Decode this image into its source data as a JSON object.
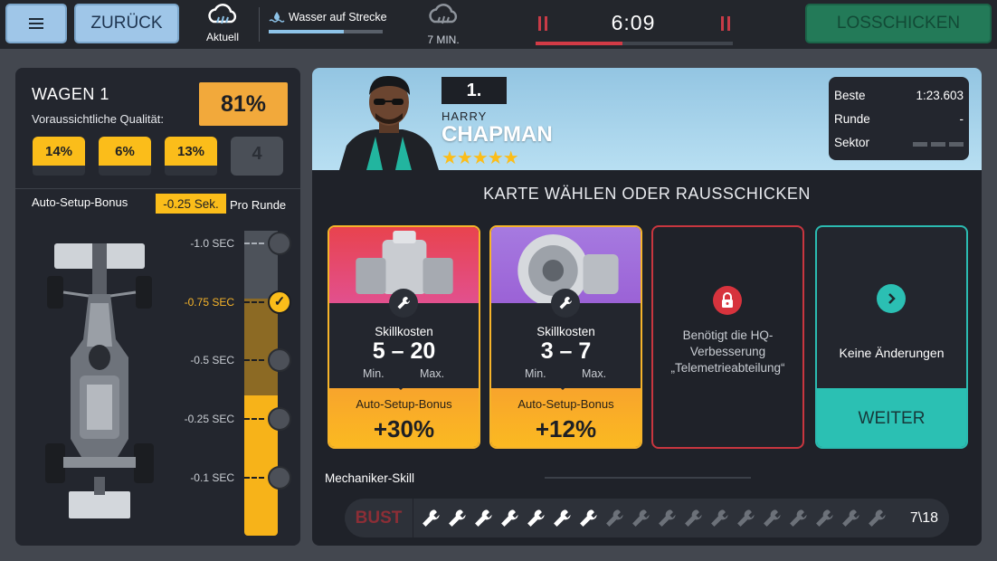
{
  "topbar": {
    "back_label": "ZURÜCK",
    "weather_now": "Aktuell",
    "water_label": "Wasser auf Strecke",
    "water_level": 0.66,
    "weather_next": "7 MIN.",
    "timer": "6:09",
    "timer_progress": 0.44,
    "send_label": "LOSSCHICKEN"
  },
  "car_panel": {
    "title": "WAGEN 1",
    "subtitle": "Voraussichtliche Qualität:",
    "quality": "81%",
    "slots": [
      "14%",
      "6%",
      "13%",
      "4"
    ],
    "setup_label": "Auto-Setup-Bonus",
    "setup_value": "-0.25 Sek.",
    "setup_suffix": "Pro Runde",
    "sec_levels": [
      "-1.0 SEC",
      "-0.75 SEC",
      "-0.5 SEC",
      "-0.25 SEC",
      "-0.1 SEC"
    ],
    "selected_level": "-0.75 SEC"
  },
  "driver": {
    "position": "1.",
    "first_name": "HARRY",
    "last_name": "CHAPMAN",
    "stars": "★★★★★",
    "stats": [
      {
        "label": "Beste",
        "value": "1:23.603"
      },
      {
        "label": "Runde",
        "value": "-"
      },
      {
        "label": "Sektor",
        "value": ""
      }
    ]
  },
  "cards_heading": "KARTE WÄHLEN ODER RAUSSCHICKEN",
  "cards": [
    {
      "cost_label": "Skillkosten",
      "min": "5",
      "max": "20",
      "min_label": "Min.",
      "max_label": "Max.",
      "bonus_label": "Auto-Setup-Bonus",
      "bonus_value": "+30%"
    },
    {
      "cost_label": "Skillkosten",
      "min": "3",
      "max": "7",
      "min_label": "Min.",
      "max_label": "Max.",
      "bonus_label": "Auto-Setup-Bonus",
      "bonus_value": "+12%"
    }
  ],
  "locked_card": {
    "text": "Benötigt die HQ-Verbesserung „Telemetrieabteilung“"
  },
  "continue_card": {
    "text": "Keine Änderungen",
    "button": "WEITER"
  },
  "mechanic": {
    "label": "Mechaniker-Skill",
    "bust": "BUST",
    "count": "7\\18",
    "filled": 7,
    "total": 18
  },
  "colors": {
    "accent_yellow": "#fbbd1a",
    "quality_orange": "#f2a93b",
    "teal": "#2bc0b3",
    "danger_red": "#d7333d",
    "sky_blue": "#9fc6e8"
  }
}
